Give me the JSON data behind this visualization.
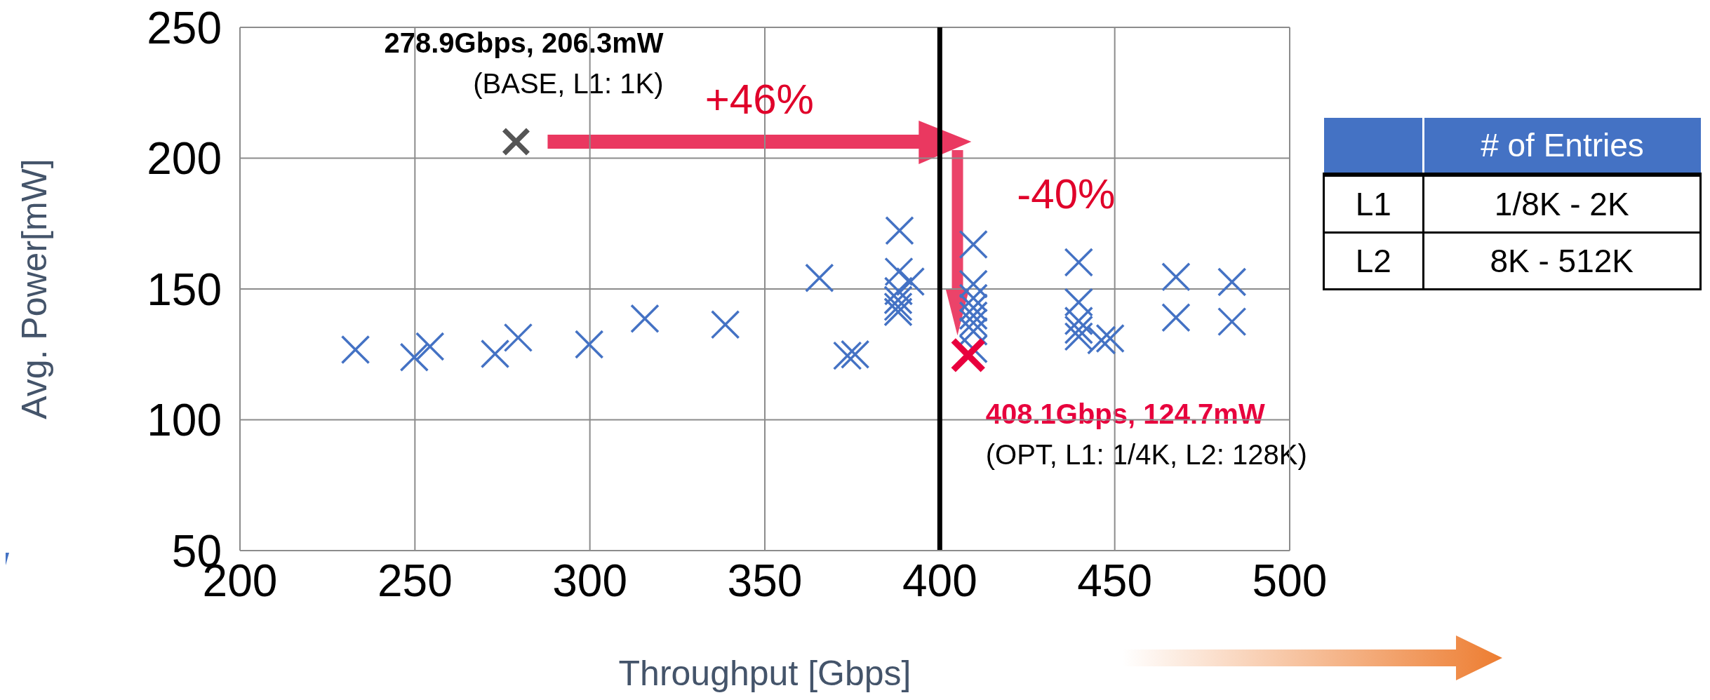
{
  "chart_data": [
    {
      "type": "scatter",
      "xlabel": "Throughput [Gbps]",
      "ylabel": "Avg. Power[mW]",
      "xlim": [
        200,
        500
      ],
      "xticks": [
        200,
        250,
        300,
        350,
        400,
        450,
        500
      ],
      "ylim": [
        50,
        250
      ],
      "yticks": [
        50,
        100,
        150,
        200,
        250
      ],
      "grid": true,
      "legend": false,
      "marker": "cross",
      "series": [
        {
          "color": "#4472c4",
          "x": [
            233.0,
            249.8,
            254.3,
            272.9,
            279.5,
            299.8,
            315.7,
            338.7,
            365.6,
            373.6,
            375.8,
            388.5,
            388.3,
            391.6,
            388.2,
            388.1,
            388.1,
            388.1,
            409.6,
            409.6,
            409.6,
            409.6,
            409.6,
            409.6,
            409.6,
            409.6,
            439.7,
            439.7,
            439.7,
            439.7,
            439.7,
            446.2,
            448.7,
            467.5,
            467.5,
            483.5,
            483.5
          ],
          "values": [
            126.8,
            123.9,
            128.0,
            125.2,
            131.4,
            128.8,
            138.7,
            136.4,
            154.2,
            124.5,
            125.0,
            172.3,
            156.6,
            152.8,
            149.2,
            145.8,
            143.2,
            141.2,
            167.0,
            151.9,
            146.5,
            142.8,
            139.8,
            137.1,
            133.8,
            127.1,
            160.2,
            144.9,
            137.8,
            134.4,
            131.8,
            130.4,
            131.1,
            154.6,
            139.1,
            152.7,
            137.5
          ]
        },
        {
          "color": "#555555",
          "x": [
            278.9
          ],
          "values": [
            206.3
          ]
        },
        {
          "color": "#e8003d",
          "x": [
            408.1
          ],
          "values": [
            124.7
          ]
        }
      ],
      "ref_lines": [
        {
          "axis": "x",
          "value": 400,
          "color": "#000000"
        }
      ],
      "annotations": [
        {
          "text": "278.9Gbps, 206.3mW\n(BASE, L1: 1K)",
          "x": 278.9,
          "y": 206.3
        },
        {
          "text": "408.1Gbps, 124.7mW\n(OPT, L1: 1/4K, L2: 128K)",
          "x": 408.1,
          "y": 124.7
        },
        "+46%",
        "-40%"
      ]
    },
    {
      "type": "other",
      "annotations": [
        "# of Entries",
        "L1",
        "1/8K - 2K",
        "L2",
        "8K - 512K"
      ]
    }
  ]
}
